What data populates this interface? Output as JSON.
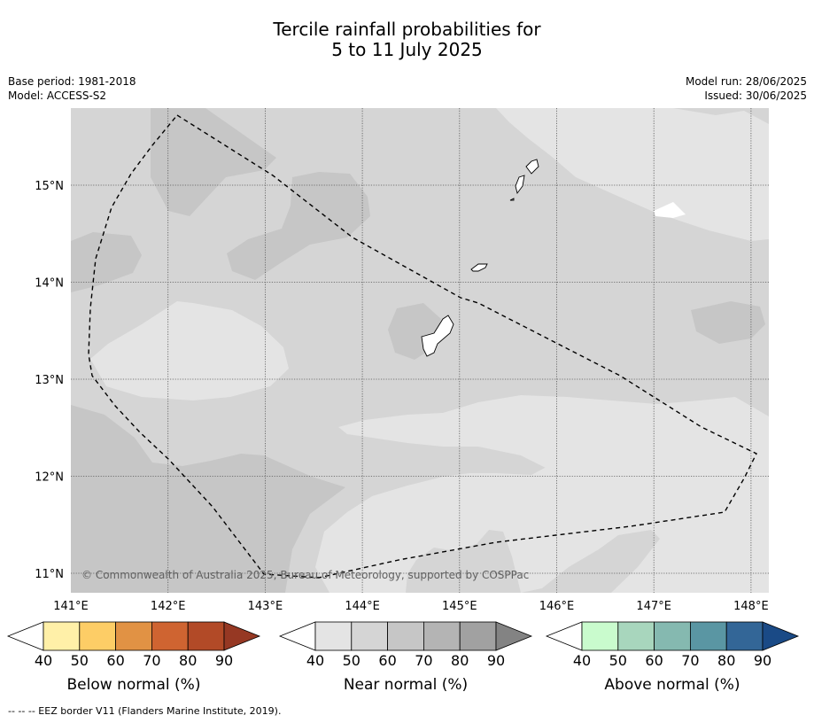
{
  "title": {
    "line1": "Tercile rainfall probabilities for",
    "line2": "5 to 11 July 2025"
  },
  "meta_left": {
    "base_period": "Base period: 1981-2018",
    "model": "Model: ACCESS-S2"
  },
  "meta_right": {
    "model_run": "Model run: 28/06/2025",
    "issued": "Issued: 30/06/2025"
  },
  "map": {
    "lat_labels": [
      "15°N",
      "14°N",
      "13°N",
      "12°N",
      "11°N"
    ],
    "lon_labels": [
      "141°E",
      "142°E",
      "143°E",
      "144°E",
      "145°E",
      "146°E",
      "147°E",
      "148°E"
    ],
    "copyright": "© Commonwealth of Australia 2025, Bureau of Meteorology, supported by COSPPac",
    "colors": {
      "near_40_50": "#e4e4e4",
      "near_50_60": "#d5d5d5",
      "near_60_70": "#c6c6c6",
      "grid": "#555555",
      "eez_border": "#000000"
    }
  },
  "legends": [
    {
      "label": "Below normal (%)",
      "ticks": [
        "40",
        "50",
        "60",
        "70",
        "80",
        "90"
      ],
      "colors": [
        "#ffffff",
        "#fff0a8",
        "#fdcd66",
        "#e19244",
        "#cf6431",
        "#b24a27",
        "#963823"
      ]
    },
    {
      "label": "Near normal (%)",
      "ticks": [
        "40",
        "50",
        "60",
        "70",
        "80",
        "90"
      ],
      "colors": [
        "#ffffff",
        "#e4e4e4",
        "#d5d5d5",
        "#c6c6c6",
        "#b4b4b4",
        "#a1a1a1",
        "#838383"
      ]
    },
    {
      "label": "Above normal (%)",
      "ticks": [
        "40",
        "50",
        "60",
        "70",
        "80",
        "90"
      ],
      "colors": [
        "#ffffff",
        "#c9fbcd",
        "#a8d6bd",
        "#85b9b0",
        "#5a96a3",
        "#336697",
        "#1a4a86"
      ]
    }
  ],
  "footer": "--  --  -- EEZ border V11 (Flanders Marine Institute, 2019)."
}
